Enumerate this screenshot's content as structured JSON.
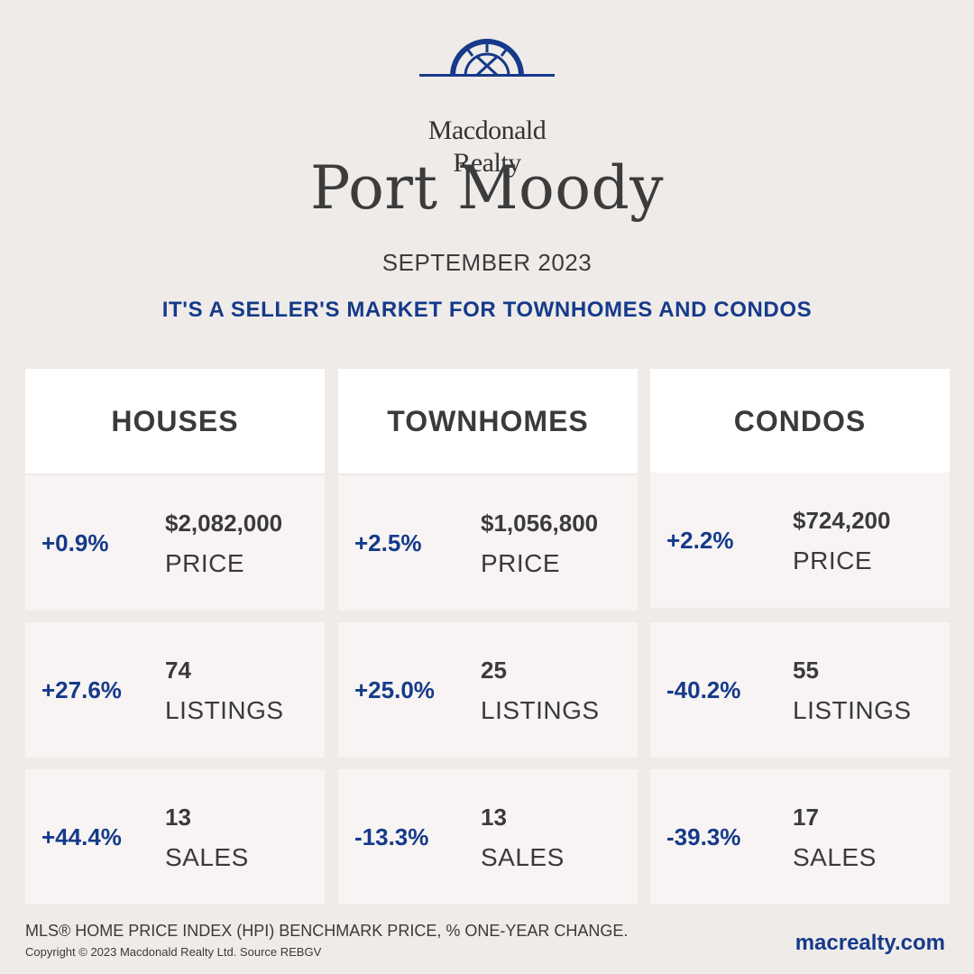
{
  "brand": {
    "name_line1": "Macdonald",
    "name_line2": "Realty",
    "logo_icon": "fan-window-logo-icon",
    "accent_color": "#163a8a"
  },
  "header": {
    "city": "Port Moody",
    "month": "SEPTEMBER 2023",
    "headline": "IT'S A SELLER'S MARKET FOR TOWNHOMES AND CONDOS"
  },
  "columns": [
    {
      "title": "HOUSES",
      "stats": [
        {
          "pct": "+0.9%",
          "value": "$2,082,000",
          "label": "PRICE"
        },
        {
          "pct": "+27.6%",
          "value": "74",
          "label": "LISTINGS"
        },
        {
          "pct": "+44.4%",
          "value": "13",
          "label": "SALES"
        }
      ]
    },
    {
      "title": "TOWNHOMES",
      "stats": [
        {
          "pct": "+2.5%",
          "value": "$1,056,800",
          "label": "PRICE"
        },
        {
          "pct": "+25.0%",
          "value": "25",
          "label": "LISTINGS"
        },
        {
          "pct": "-13.3%",
          "value": "13",
          "label": "SALES"
        }
      ]
    },
    {
      "title": "CONDOS",
      "stats": [
        {
          "pct": "+2.2%",
          "value": "$724,200",
          "label": "PRICE"
        },
        {
          "pct": "-40.2%",
          "value": "55",
          "label": "LISTINGS"
        },
        {
          "pct": "-39.3%",
          "value": "17",
          "label": "SALES"
        }
      ]
    }
  ],
  "footer": {
    "note": "MLS® HOME PRICE INDEX (HPI) BENCHMARK PRICE, % ONE-YEAR CHANGE.",
    "copyright": "Copyright © 2023 Macdonald Realty Ltd. Source REBGV",
    "website": "macrealty.com"
  }
}
